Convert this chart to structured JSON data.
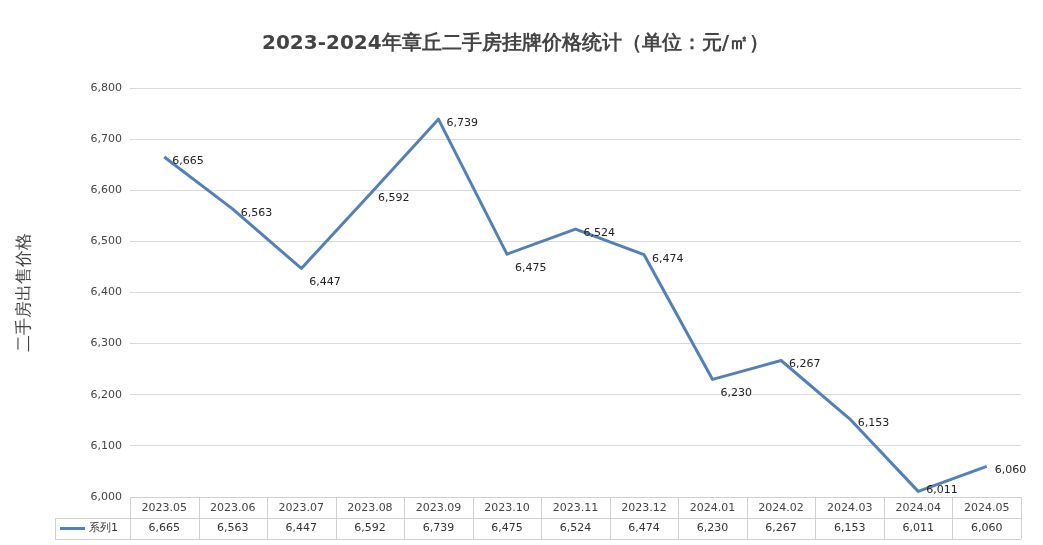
{
  "chart_data": {
    "type": "line",
    "title": "2023-2024年章丘二手房挂牌价格统计（单位：元/㎡）",
    "ylabel": "二手房出售价格",
    "categories": [
      "2023.05",
      "2023.06",
      "2023.07",
      "2023.08",
      "2023.09",
      "2023.10",
      "2023.11",
      "2023.12",
      "2024.01",
      "2024.02",
      "2024.03",
      "2024.04",
      "2024.05"
    ],
    "series": [
      {
        "name": "系列1",
        "color": "#5580b5",
        "values": [
          6665,
          6563,
          6447,
          6592,
          6739,
          6475,
          6524,
          6474,
          6230,
          6267,
          6153,
          6011,
          6060
        ],
        "value_labels": [
          "6,665",
          "6,563",
          "6,447",
          "6,592",
          "6,739",
          "6,475",
          "6,524",
          "6,474",
          "6,230",
          "6,267",
          "6,153",
          "6,011",
          "6,060"
        ]
      }
    ],
    "ylim": [
      6000,
      6800
    ],
    "yticks": [
      {
        "value": 6000,
        "label": "6,000"
      },
      {
        "value": 6100,
        "label": "6,100"
      },
      {
        "value": 6200,
        "label": "6,200"
      },
      {
        "value": 6300,
        "label": "6,300"
      },
      {
        "value": 6400,
        "label": "6,400"
      },
      {
        "value": 6500,
        "label": "6,500"
      },
      {
        "value": 6600,
        "label": "6,600"
      },
      {
        "value": 6700,
        "label": "6,700"
      },
      {
        "value": 6800,
        "label": "6,800"
      }
    ],
    "grid": "y",
    "legend": "bottom",
    "marker": "none",
    "line_style": "solid"
  }
}
